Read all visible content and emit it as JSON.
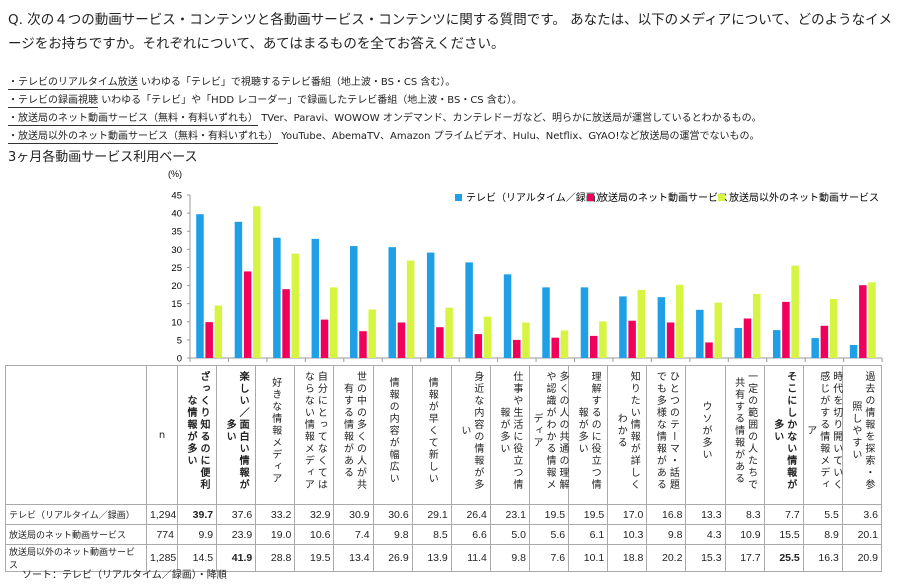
{
  "question": "Q. 次の４つの動画サービス・コンテンツと各動画サービス・コンテンツに関する質問です。 あなたは、以下のメディアについて、どのようなイメージをお持ちですか。それぞれについて、あてはまるものを全てお答えください。",
  "definitions": [
    {
      "term": "・テレビのリアルタイム放送",
      "desc": "いわゆる「テレビ」で視聴するテレビ番組（地上波・BS・CS 含む）。"
    },
    {
      "term": "・テレビの録画視聴",
      "desc": "いわゆる「テレビ」や「HDD レコーダー」で録画したテレビ番組（地上波・BS・CS 含む）。"
    },
    {
      "term": "・放送局のネット動画サービス（無料・有料いずれも）",
      "desc": "TVer、Paravi、WOWOW オンデマンド、カンテレドーガなど、明らかに放送局が運営しているとわかるもの。"
    },
    {
      "term": "・放送局以外のネット動画サービス（無料・有料いずれも）",
      "desc": "YouTube、AbemaTV、Amazon プライムビデオ、Hulu、Netflix、GYAO!など放送局の運営でないもの。"
    }
  ],
  "subtitle": "3ヶ月各動画サービス利用ベース",
  "footnote": "ソート：テレビ（リアルタイム／録画）・降順",
  "chart_data": {
    "type": "bar",
    "ylabel": "(%)",
    "ylim": [
      0,
      45
    ],
    "yticks": [
      "0",
      "5",
      "10",
      "15",
      "20",
      "25",
      "30",
      "35",
      "40",
      "45"
    ],
    "legend_position": "top-right",
    "n_label": "n",
    "categories": [
      "ざっくり知るのに便利な情報が多い",
      "楽しい／面白い情報が多い",
      "好きな情報メディア",
      "自分にとってなくてはならない情報メディア",
      "世の中の多くの人が共有する情報がある",
      "情報の内容が幅広い",
      "情報が早くて新しい",
      "身近な内容の情報が多い",
      "仕事や生活に役立つ情報が多い",
      "多くの人の共通の理解や認識がわかる情報メディア",
      "理解するのに役立つ情報が多い",
      "知りたい情報が詳しくわかる",
      "ひとつのテーマ・話題でも多様な情報がある",
      "ウソが多い",
      "一定の範囲の人たちで共有する情報がある",
      "そこにしかない情報が多い",
      "時代を切り開いていく感じがする情報メディア",
      "過去の情報を探索・参照しやすい"
    ],
    "bold_categories": [
      0,
      1,
      15
    ],
    "series": [
      {
        "name": "テレビ（リアルタイム／録画）",
        "n": "1,294",
        "color": "#1fa0e6",
        "values": [
          39.7,
          37.6,
          33.2,
          32.9,
          30.9,
          30.6,
          29.1,
          26.4,
          23.1,
          19.5,
          19.5,
          17.0,
          16.8,
          13.3,
          8.3,
          7.7,
          5.5,
          3.6
        ],
        "bold": [
          0
        ]
      },
      {
        "name": "放送局のネット動画サービス",
        "n": "774",
        "color": "#f0005a",
        "values": [
          9.9,
          23.9,
          19.0,
          10.6,
          7.4,
          9.8,
          8.5,
          6.6,
          5.0,
          5.6,
          6.1,
          10.3,
          9.8,
          4.3,
          10.9,
          15.5,
          8.9,
          20.1
        ],
        "bold": []
      },
      {
        "name": "放送局以外のネット動画サービス",
        "n": "1,285",
        "color": "#d6f542",
        "values": [
          14.5,
          41.9,
          28.8,
          19.5,
          13.4,
          26.9,
          13.9,
          11.4,
          9.8,
          7.6,
          10.1,
          18.8,
          20.2,
          15.3,
          17.7,
          25.5,
          16.3,
          20.9
        ],
        "bold": [
          1,
          15
        ]
      }
    ]
  }
}
